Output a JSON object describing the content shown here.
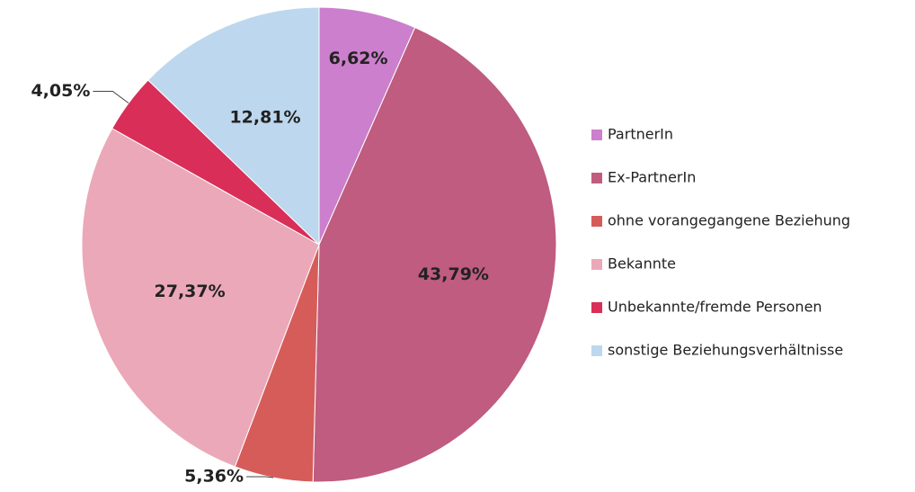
{
  "chart_data": {
    "type": "pie",
    "categories": [
      "PartnerIn",
      "Ex-PartnerIn",
      "ohne vorangegangene Beziehung",
      "Bekannte",
      "Unbekannte/fremde Personen",
      "sonstige Beziehungsverhältnisse"
    ],
    "values": [
      6.62,
      43.79,
      5.36,
      27.37,
      4.05,
      12.81
    ],
    "value_labels": [
      "6,62%",
      "43,79%",
      "5,36%",
      "27,37%",
      "4,05%",
      "12,81%"
    ],
    "colors": [
      "#cc7fcc",
      "#bf5c80",
      "#d65c5a",
      "#eba8b8",
      "#d92e57",
      "#bdd7ee"
    ],
    "legend": "right"
  }
}
